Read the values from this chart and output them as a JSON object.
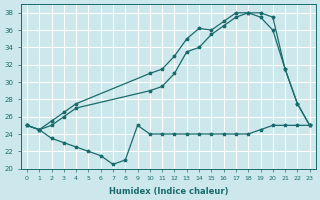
{
  "xlabel": "Humidex (Indice chaleur)",
  "bg_color": "#cce8ec",
  "grid_color": "#ffffff",
  "line_color": "#1a6b6b",
  "xlim": [
    -0.5,
    23.5
  ],
  "ylim": [
    20,
    39
  ],
  "xticks": [
    0,
    1,
    2,
    3,
    4,
    5,
    6,
    7,
    8,
    9,
    10,
    11,
    12,
    13,
    14,
    15,
    16,
    17,
    18,
    19,
    20,
    21,
    22,
    23
  ],
  "yticks": [
    20,
    22,
    24,
    26,
    28,
    30,
    32,
    34,
    36,
    38
  ],
  "s1_x": [
    0,
    1,
    2,
    3,
    4,
    5,
    6,
    7,
    8,
    9,
    10,
    11,
    12,
    13,
    14,
    15,
    16,
    17,
    18,
    19,
    20,
    21,
    22,
    23
  ],
  "s1_y": [
    25,
    24.5,
    23.5,
    23,
    22.5,
    22,
    21.5,
    20.5,
    21,
    25,
    24,
    24,
    24,
    24,
    24,
    24,
    24,
    24,
    24,
    24.5,
    25,
    25,
    25,
    25
  ],
  "s2_x": [
    0,
    1,
    2,
    3,
    4,
    10,
    11,
    12,
    13,
    14,
    15,
    16,
    17,
    18,
    19,
    20,
    21,
    22,
    23
  ],
  "s2_y": [
    25,
    24.5,
    25.5,
    26.5,
    27.5,
    31,
    31.5,
    33,
    35,
    36.2,
    36,
    37,
    38,
    38,
    38,
    37.5,
    31.5,
    27.5,
    25
  ],
  "s3_x": [
    0,
    1,
    2,
    3,
    4,
    10,
    11,
    12,
    13,
    14,
    15,
    16,
    17,
    18,
    19,
    20,
    21,
    22,
    23
  ],
  "s3_y": [
    25,
    24.5,
    25,
    26,
    27,
    29,
    29.5,
    31,
    33.5,
    34,
    35.5,
    36.5,
    37.5,
    38,
    37.5,
    36,
    31.5,
    27.5,
    25
  ]
}
